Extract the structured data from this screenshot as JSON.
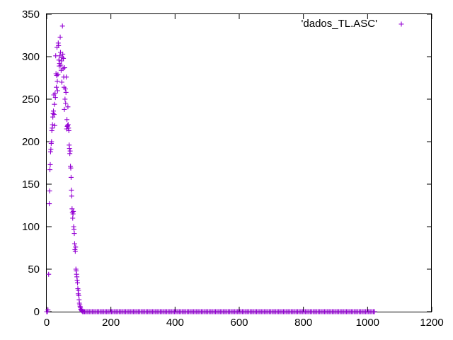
{
  "chart_data": {
    "type": "scatter",
    "marker": "plus",
    "color": "#9400d3",
    "legend_position": "top-right",
    "grid": false,
    "xlim": [
      0,
      1200
    ],
    "ylim": [
      0,
      350
    ],
    "x_ticks": [
      0,
      200,
      400,
      600,
      800,
      1000,
      1200
    ],
    "y_ticks": [
      0,
      50,
      100,
      150,
      200,
      250,
      300,
      350
    ],
    "series": [
      {
        "name": "'dados_TL.ASC'",
        "points": [
          [
            0,
            0
          ],
          [
            2,
            0
          ],
          [
            4,
            2
          ],
          [
            6,
            44
          ],
          [
            8,
            127
          ],
          [
            9,
            142
          ],
          [
            10,
            167
          ],
          [
            11,
            173
          ],
          [
            12,
            188
          ],
          [
            13,
            191
          ],
          [
            14,
            198
          ],
          [
            15,
            200
          ],
          [
            16,
            213
          ],
          [
            17,
            216
          ],
          [
            18,
            220
          ],
          [
            19,
            229
          ],
          [
            20,
            233
          ],
          [
            21,
            236
          ],
          [
            22,
            255
          ],
          [
            23,
            232
          ],
          [
            24,
            244
          ],
          [
            25,
            219
          ],
          [
            26,
            257
          ],
          [
            27,
            252
          ],
          [
            28,
            301
          ],
          [
            29,
            280
          ],
          [
            30,
            264
          ],
          [
            31,
            278
          ],
          [
            32,
            311
          ],
          [
            33,
            271
          ],
          [
            34,
            260
          ],
          [
            35,
            279
          ],
          [
            36,
            316
          ],
          [
            37,
            313
          ],
          [
            38,
            296
          ],
          [
            39,
            289
          ],
          [
            40,
            292
          ],
          [
            41,
            301
          ],
          [
            42,
            323
          ],
          [
            43,
            305
          ],
          [
            44,
            290
          ],
          [
            45,
            284
          ],
          [
            46,
            295
          ],
          [
            47,
            270
          ],
          [
            48,
            299
          ],
          [
            49,
            336
          ],
          [
            50,
            303
          ],
          [
            51,
            286
          ],
          [
            52,
            298
          ],
          [
            53,
            276
          ],
          [
            54,
            264
          ],
          [
            55,
            238
          ],
          [
            56,
            287
          ],
          [
            57,
            250
          ],
          [
            58,
            262
          ],
          [
            59,
            245
          ],
          [
            60,
            258
          ],
          [
            61,
            276
          ],
          [
            62,
            215
          ],
          [
            63,
            226
          ],
          [
            64,
            218
          ],
          [
            65,
            219
          ],
          [
            66,
            241
          ],
          [
            67,
            220
          ],
          [
            68,
            216
          ],
          [
            69,
            213
          ],
          [
            70,
            196
          ],
          [
            71,
            192
          ],
          [
            72,
            186
          ],
          [
            73,
            189
          ],
          [
            74,
            171
          ],
          [
            75,
            169
          ],
          [
            76,
            158
          ],
          [
            77,
            143
          ],
          [
            78,
            136
          ],
          [
            79,
            121
          ],
          [
            80,
            117
          ],
          [
            81,
            110
          ],
          [
            82,
            115
          ],
          [
            83,
            118
          ],
          [
            84,
            100
          ],
          [
            85,
            97
          ],
          [
            86,
            92
          ],
          [
            87,
            80
          ],
          [
            88,
            73
          ],
          [
            89,
            71
          ],
          [
            90,
            76
          ],
          [
            91,
            50
          ],
          [
            92,
            48
          ],
          [
            93,
            44
          ],
          [
            94,
            41
          ],
          [
            95,
            37
          ],
          [
            96,
            34
          ],
          [
            97,
            27
          ],
          [
            98,
            21
          ],
          [
            99,
            25
          ],
          [
            100,
            19
          ],
          [
            101,
            14
          ],
          [
            102,
            10
          ],
          [
            103,
            8
          ],
          [
            104,
            6
          ],
          [
            105,
            5
          ],
          [
            106,
            3
          ],
          [
            107,
            3
          ],
          [
            108,
            2
          ],
          [
            109,
            1
          ],
          [
            110,
            1
          ],
          [
            112,
            0
          ],
          [
            115,
            0
          ],
          [
            118,
            0
          ],
          [
            122,
            0
          ]
        ]
      }
    ],
    "baseline_run": {
      "y": 0,
      "from_x": 122,
      "to_x": 1022,
      "step": 4
    }
  }
}
